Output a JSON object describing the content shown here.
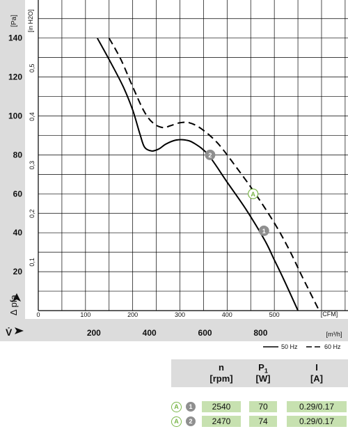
{
  "chart_data": {
    "type": "line",
    "x_unit_top": "[CFM]",
    "x_unit_bottom": "[m³/h]",
    "y_unit_left": "[Pa]",
    "y_unit_right": "[in H2O]",
    "ylabel": "Δ pfa",
    "xlabel": "V̇",
    "x_cfm_ticks": [
      "0",
      "100",
      "200",
      "300",
      "400",
      "500"
    ],
    "x_m3h_ticks": [
      "200",
      "400",
      "600",
      "800"
    ],
    "y_pa_ticks": [
      "20",
      "40",
      "60",
      "80",
      "100",
      "120",
      "140"
    ],
    "y_inh2o_ticks": [
      "0,1",
      "0,2",
      "0,3",
      "0,4",
      "0,5"
    ],
    "xlim_cfm": [
      0,
      600
    ],
    "ylim_pa": [
      0,
      150
    ],
    "grid": true,
    "series": [
      {
        "name": "50 Hz",
        "style": "solid",
        "x": [
          125,
          150,
          180,
          200,
          215,
          225,
          240,
          255,
          270,
          290,
          310,
          330,
          360,
          400,
          440,
          480,
          500,
          520,
          550
        ],
        "y": [
          140,
          129,
          115,
          103,
          91,
          84,
          82,
          83,
          85.5,
          87.5,
          87.7,
          86,
          80,
          66,
          52,
          36,
          26,
          16,
          0
        ]
      },
      {
        "name": "60 Hz",
        "style": "dashed",
        "x": [
          150,
          175,
          200,
          225,
          245,
          265,
          280,
          300,
          320,
          345,
          380,
          420,
          460,
          500,
          530,
          560,
          595
        ],
        "y": [
          140,
          129,
          115,
          102,
          96,
          94,
          95,
          96.5,
          96.5,
          93.5,
          86,
          73.5,
          60,
          45,
          32,
          17,
          0
        ]
      }
    ],
    "operating_points": [
      {
        "label": "2",
        "type": "number",
        "x": 364,
        "y": 80
      },
      {
        "label": "A",
        "type": "letter",
        "x": 455,
        "y": 60
      },
      {
        "label": "1",
        "type": "number",
        "x": 478,
        "y": 41
      }
    ]
  },
  "legend": {
    "solid_label": "50 Hz",
    "dashed_label": "60 Hz"
  },
  "table": {
    "headers": [
      {
        "main": "n",
        "sub": "",
        "unit": "[rpm]"
      },
      {
        "main": "P",
        "sub": "1",
        "unit": "[W]"
      },
      {
        "main": "I",
        "sub": "",
        "unit": "[A]"
      }
    ],
    "rows": [
      {
        "letter": "A",
        "number": "1",
        "n": "2540",
        "p": "70",
        "i": "0.29/0.17"
      },
      {
        "letter": "A",
        "number": "2",
        "n": "2470",
        "p": "74",
        "i": "0.29/0.17"
      }
    ]
  },
  "colors": {
    "left_band": "#dcdcdc",
    "bottom_band": "#dcdcdc",
    "table_header": "#dcdcdc",
    "table_cell": "#c7e1b0",
    "badge_letter": "#7ab648",
    "badge_number": "#8f8f8f"
  }
}
